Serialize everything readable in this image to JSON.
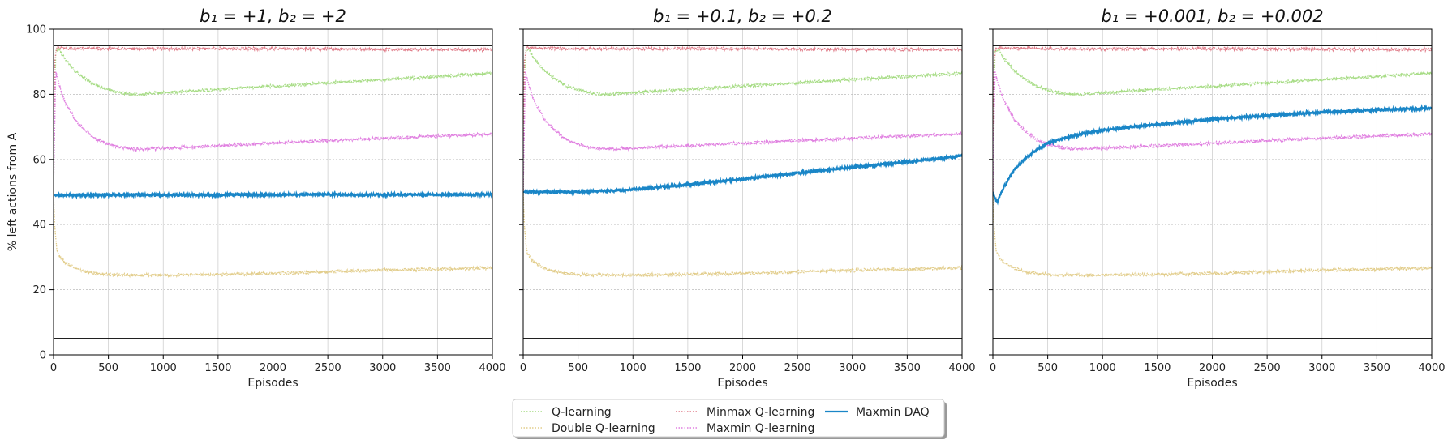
{
  "chart_data": [
    {
      "type": "line",
      "title": "b₁ = +1, b₂ = +2",
      "xlabel": "Episodes",
      "ylabel": "% left actions from A",
      "xlim": [
        0,
        4000
      ],
      "ylim": [
        0,
        100
      ],
      "xticks": [
        0,
        500,
        1000,
        1500,
        2000,
        2500,
        3000,
        3500,
        4000
      ],
      "yticks": [
        0,
        20,
        40,
        60,
        80,
        100
      ],
      "reference_lines": [
        95,
        5
      ],
      "series": [
        {
          "name": "Q-learning",
          "x": [
            0,
            20,
            50,
            100,
            200,
            300,
            400,
            500,
            600,
            700,
            800,
            1000,
            1500,
            2000,
            2500,
            3000,
            3500,
            4000
          ],
          "values": [
            50,
            93,
            94,
            91,
            87,
            84.5,
            82.5,
            81.5,
            80.5,
            80,
            80,
            80.5,
            81.5,
            82.5,
            83.5,
            84.5,
            85.5,
            86.5
          ]
        },
        {
          "name": "Double Q-learning",
          "x": [
            0,
            10,
            30,
            60,
            100,
            200,
            300,
            400,
            500,
            600,
            800,
            1000,
            1500,
            2000,
            2500,
            3000,
            3500,
            4000
          ],
          "values": [
            50,
            40,
            32,
            30,
            28.5,
            26.5,
            25.5,
            25,
            24.7,
            24.5,
            24.5,
            24.5,
            24.7,
            25,
            25.5,
            26,
            26.3,
            26.7
          ]
        },
        {
          "name": "Minmax Q-learning",
          "x": [
            0,
            10,
            30,
            100,
            500,
            1000,
            2000,
            3000,
            4000
          ],
          "values": [
            50,
            90,
            94.5,
            94.2,
            94,
            94,
            94,
            93.8,
            93.7
          ]
        },
        {
          "name": "Maxmin Q-learning",
          "x": [
            0,
            20,
            50,
            100,
            200,
            300,
            400,
            500,
            600,
            700,
            800,
            1000,
            1500,
            2000,
            2500,
            3000,
            3500,
            4000
          ],
          "values": [
            50,
            87,
            83,
            78,
            72,
            68.5,
            66,
            64.7,
            63.8,
            63.3,
            63.2,
            63.4,
            64.2,
            65,
            65.8,
            66.5,
            67.2,
            67.8
          ]
        },
        {
          "name": "Maxmin DAQ",
          "x": [
            0,
            500,
            1000,
            1500,
            2000,
            2500,
            3000,
            3500,
            4000
          ],
          "values": [
            49,
            49.1,
            49.1,
            49.1,
            49.2,
            49.2,
            49.2,
            49.2,
            49.2
          ]
        }
      ]
    },
    {
      "type": "line",
      "title": "b₁ = +0.1, b₂ = +0.2",
      "xlabel": "Episodes",
      "ylabel": "",
      "xlim": [
        0,
        4000
      ],
      "ylim": [
        0,
        100
      ],
      "xticks": [
        0,
        500,
        1000,
        1500,
        2000,
        2500,
        3000,
        3500,
        4000
      ],
      "yticks": [
        0,
        20,
        40,
        60,
        80,
        100
      ],
      "reference_lines": [
        95,
        5
      ],
      "series": [
        {
          "name": "Q-learning",
          "x": [
            0,
            20,
            50,
            100,
            200,
            300,
            400,
            500,
            600,
            700,
            800,
            1000,
            1500,
            2000,
            2500,
            3000,
            3500,
            4000
          ],
          "values": [
            50,
            93,
            94,
            91,
            87,
            84.5,
            82.5,
            81.5,
            80.5,
            80,
            80,
            80.5,
            81.5,
            82.5,
            83.5,
            84.5,
            85.5,
            86.5
          ]
        },
        {
          "name": "Double Q-learning",
          "x": [
            0,
            10,
            30,
            60,
            100,
            200,
            300,
            400,
            500,
            600,
            800,
            1000,
            1500,
            2000,
            2500,
            3000,
            3500,
            4000
          ],
          "values": [
            50,
            40,
            32,
            30,
            28.5,
            26.5,
            25.5,
            25,
            24.7,
            24.5,
            24.5,
            24.5,
            24.7,
            25,
            25.5,
            26,
            26.3,
            26.7
          ]
        },
        {
          "name": "Minmax Q-learning",
          "x": [
            0,
            10,
            30,
            100,
            500,
            1000,
            2000,
            3000,
            4000
          ],
          "values": [
            50,
            90,
            94.5,
            94.2,
            94,
            94,
            94,
            93.8,
            93.7
          ]
        },
        {
          "name": "Maxmin Q-learning",
          "x": [
            0,
            20,
            50,
            100,
            200,
            300,
            400,
            500,
            600,
            700,
            800,
            1000,
            1500,
            2000,
            2500,
            3000,
            3500,
            4000
          ],
          "values": [
            50,
            87,
            83,
            78,
            72,
            68.5,
            66,
            64.7,
            63.8,
            63.3,
            63.2,
            63.4,
            64.2,
            65,
            65.8,
            66.5,
            67.2,
            67.8
          ]
        },
        {
          "name": "Maxmin DAQ",
          "x": [
            0,
            500,
            1000,
            1500,
            2000,
            2500,
            3000,
            3500,
            4000
          ],
          "values": [
            50,
            50,
            50.7,
            52.3,
            54,
            55.8,
            57.6,
            59.3,
            61
          ]
        }
      ]
    },
    {
      "type": "line",
      "title": "b₁ = +0.001, b₂ = +0.002",
      "xlabel": "Episodes",
      "ylabel": "",
      "xlim": [
        0,
        4000
      ],
      "ylim": [
        0,
        100
      ],
      "xticks": [
        0,
        500,
        1000,
        1500,
        2000,
        2500,
        3000,
        3500,
        4000
      ],
      "yticks": [
        0,
        20,
        40,
        60,
        80,
        100
      ],
      "reference_lines": [
        95,
        5
      ],
      "series": [
        {
          "name": "Q-learning",
          "x": [
            0,
            20,
            50,
            100,
            200,
            300,
            400,
            500,
            600,
            700,
            800,
            1000,
            1500,
            2000,
            2500,
            3000,
            3500,
            4000
          ],
          "values": [
            50,
            93,
            94,
            91,
            87,
            84.5,
            82.5,
            81.5,
            80.5,
            80,
            80,
            80.5,
            81.5,
            82.5,
            83.5,
            84.5,
            85.5,
            86.5
          ]
        },
        {
          "name": "Double Q-learning",
          "x": [
            0,
            10,
            30,
            60,
            100,
            200,
            300,
            400,
            500,
            600,
            800,
            1000,
            1500,
            2000,
            2500,
            3000,
            3500,
            4000
          ],
          "values": [
            50,
            40,
            32,
            30,
            28.5,
            26.5,
            25.5,
            25,
            24.7,
            24.5,
            24.5,
            24.5,
            24.7,
            25,
            25.5,
            26,
            26.3,
            26.7
          ]
        },
        {
          "name": "Minmax Q-learning",
          "x": [
            0,
            10,
            30,
            100,
            500,
            1000,
            2000,
            3000,
            4000
          ],
          "values": [
            50,
            90,
            94.5,
            94.2,
            94,
            94,
            94,
            93.8,
            93.7
          ]
        },
        {
          "name": "Maxmin Q-learning",
          "x": [
            0,
            20,
            50,
            100,
            200,
            300,
            400,
            500,
            600,
            700,
            800,
            1000,
            1500,
            2000,
            2500,
            3000,
            3500,
            4000
          ],
          "values": [
            50,
            87,
            83,
            78,
            72,
            68.5,
            66,
            64.7,
            63.8,
            63.3,
            63.2,
            63.4,
            64.2,
            65,
            65.8,
            66.5,
            67.2,
            67.8
          ]
        },
        {
          "name": "Maxmin DAQ",
          "x": [
            0,
            20,
            40,
            60,
            100,
            150,
            200,
            300,
            400,
            500,
            700,
            1000,
            1500,
            2000,
            2500,
            3000,
            3500,
            4000
          ],
          "values": [
            50,
            48,
            47,
            48.5,
            51.5,
            54.5,
            57,
            60.5,
            63,
            65,
            67,
            69,
            70.8,
            72.3,
            73.5,
            74.5,
            75.2,
            75.8
          ]
        }
      ]
    }
  ],
  "legend": {
    "placement": "bottom-center",
    "entries": [
      {
        "name": "Q-learning",
        "color": "#a6dc84",
        "style": "dotted"
      },
      {
        "name": "Double Q-learning",
        "color": "#e2cd8b",
        "style": "dotted"
      },
      {
        "name": "Minmax Q-learning",
        "color": "#e07c89",
        "style": "dotted"
      },
      {
        "name": "Maxmin Q-learning",
        "color": "#e07fe0",
        "style": "dotted"
      },
      {
        "name": "Maxmin DAQ",
        "color": "#1a86c7",
        "style": "solid"
      }
    ]
  },
  "colors": {
    "Q-learning": "#a6dc84",
    "Double Q-learning": "#e2cd8b",
    "Minmax Q-learning": "#e07c89",
    "Maxmin Q-learning": "#e07fe0",
    "Maxmin DAQ": "#1a86c7",
    "reference": "#000000",
    "grid": "#cccccc"
  }
}
